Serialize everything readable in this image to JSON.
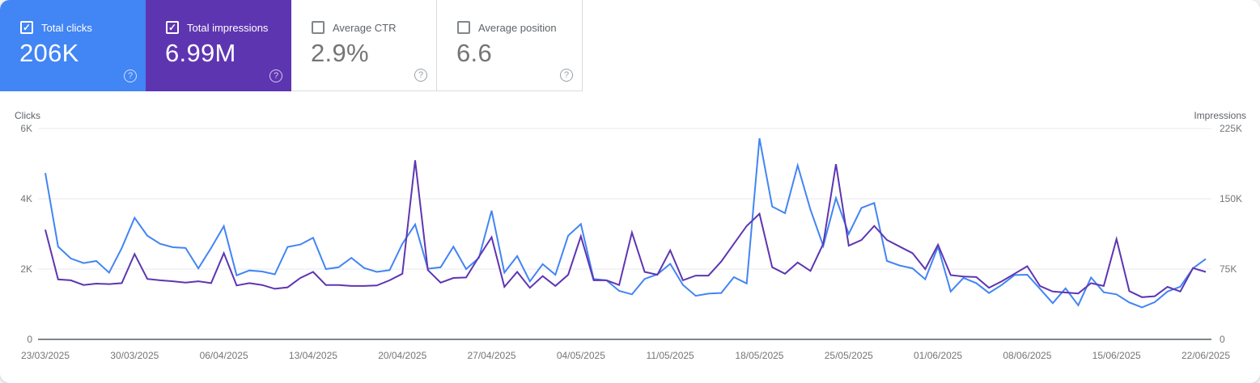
{
  "icons": {
    "check": "✓",
    "help": "?"
  },
  "colors": {
    "clicks_blue": "#4285f4",
    "impressions_purple": "#5e35b1",
    "grid_line": "#e8eaed",
    "axis_baseline": "#80868b",
    "muted_text": "#757575"
  },
  "cards": [
    {
      "label": "Total clicks",
      "value": "206K",
      "checked": true,
      "background": "#4285f4"
    },
    {
      "label": "Total impressions",
      "value": "6.99M",
      "checked": true,
      "background": "#5e35b1"
    },
    {
      "label": "Average CTR",
      "value": "2.9%",
      "checked": false,
      "background": null
    },
    {
      "label": "Average position",
      "value": "6.6",
      "checked": false,
      "background": null
    }
  ],
  "chart_data": {
    "type": "line",
    "grid": true,
    "x_tick_labels": [
      "23/03/2025",
      "30/03/2025",
      "06/04/2025",
      "13/04/2025",
      "20/04/2025",
      "27/04/2025",
      "04/05/2025",
      "11/05/2025",
      "18/05/2025",
      "25/05/2025",
      "01/06/2025",
      "08/06/2025",
      "15/06/2025",
      "22/06/2025"
    ],
    "left_axis": {
      "title": "Clicks",
      "ticks": [
        "6K",
        "4K",
        "2K",
        "0"
      ],
      "max": 6000
    },
    "right_axis": {
      "title": "Impressions",
      "ticks": [
        "225K",
        "150K",
        "75K",
        "0"
      ],
      "max": 225000
    },
    "series": [
      {
        "name": "Clicks",
        "axis": "left",
        "color": "#4285f4",
        "values": [
          4730,
          2640,
          2300,
          2170,
          2230,
          1900,
          2600,
          3460,
          2950,
          2720,
          2620,
          2600,
          2020,
          2600,
          3220,
          1820,
          1960,
          1930,
          1850,
          2630,
          2700,
          2890,
          2000,
          2050,
          2320,
          2030,
          1920,
          1970,
          2720,
          3270,
          2010,
          2050,
          2640,
          2000,
          2320,
          3660,
          1900,
          2370,
          1650,
          2140,
          1840,
          2950,
          3280,
          1720,
          1680,
          1380,
          1280,
          1720,
          1850,
          2150,
          1550,
          1240,
          1300,
          1320,
          1770,
          1590,
          5720,
          3780,
          3590,
          4950,
          3690,
          2660,
          4020,
          3000,
          3740,
          3880,
          2230,
          2100,
          2020,
          1710,
          2640,
          1360,
          1750,
          1600,
          1320,
          1550,
          1830,
          1840,
          1440,
          1030,
          1450,
          970,
          1760,
          1340,
          1280,
          1050,
          910,
          1060,
          1360,
          1500,
          2020,
          2290
        ]
      },
      {
        "name": "Impressions",
        "axis": "right",
        "color": "#5e35b1",
        "values": [
          117000,
          64000,
          63000,
          58000,
          59500,
          59000,
          60000,
          91000,
          64500,
          63000,
          62000,
          60500,
          62000,
          60000,
          92000,
          57500,
          60000,
          58000,
          54000,
          55500,
          65500,
          72000,
          58000,
          58000,
          57000,
          57000,
          57500,
          63000,
          70000,
          191000,
          74000,
          60500,
          65500,
          66000,
          88000,
          109000,
          56000,
          72000,
          55000,
          67500,
          57000,
          69000,
          110000,
          63000,
          63000,
          58000,
          114000,
          72000,
          69000,
          95000,
          63000,
          68000,
          68000,
          83000,
          102000,
          121000,
          134000,
          77000,
          70000,
          82000,
          73000,
          102000,
          187000,
          100000,
          106000,
          121000,
          106000,
          99000,
          92000,
          75000,
          101000,
          68500,
          67000,
          66500,
          55000,
          62000,
          70000,
          78000,
          57000,
          51000,
          50000,
          49000,
          60000,
          57000,
          107000,
          51500,
          45000,
          46000,
          56000,
          51000,
          76000,
          72000
        ]
      }
    ]
  }
}
